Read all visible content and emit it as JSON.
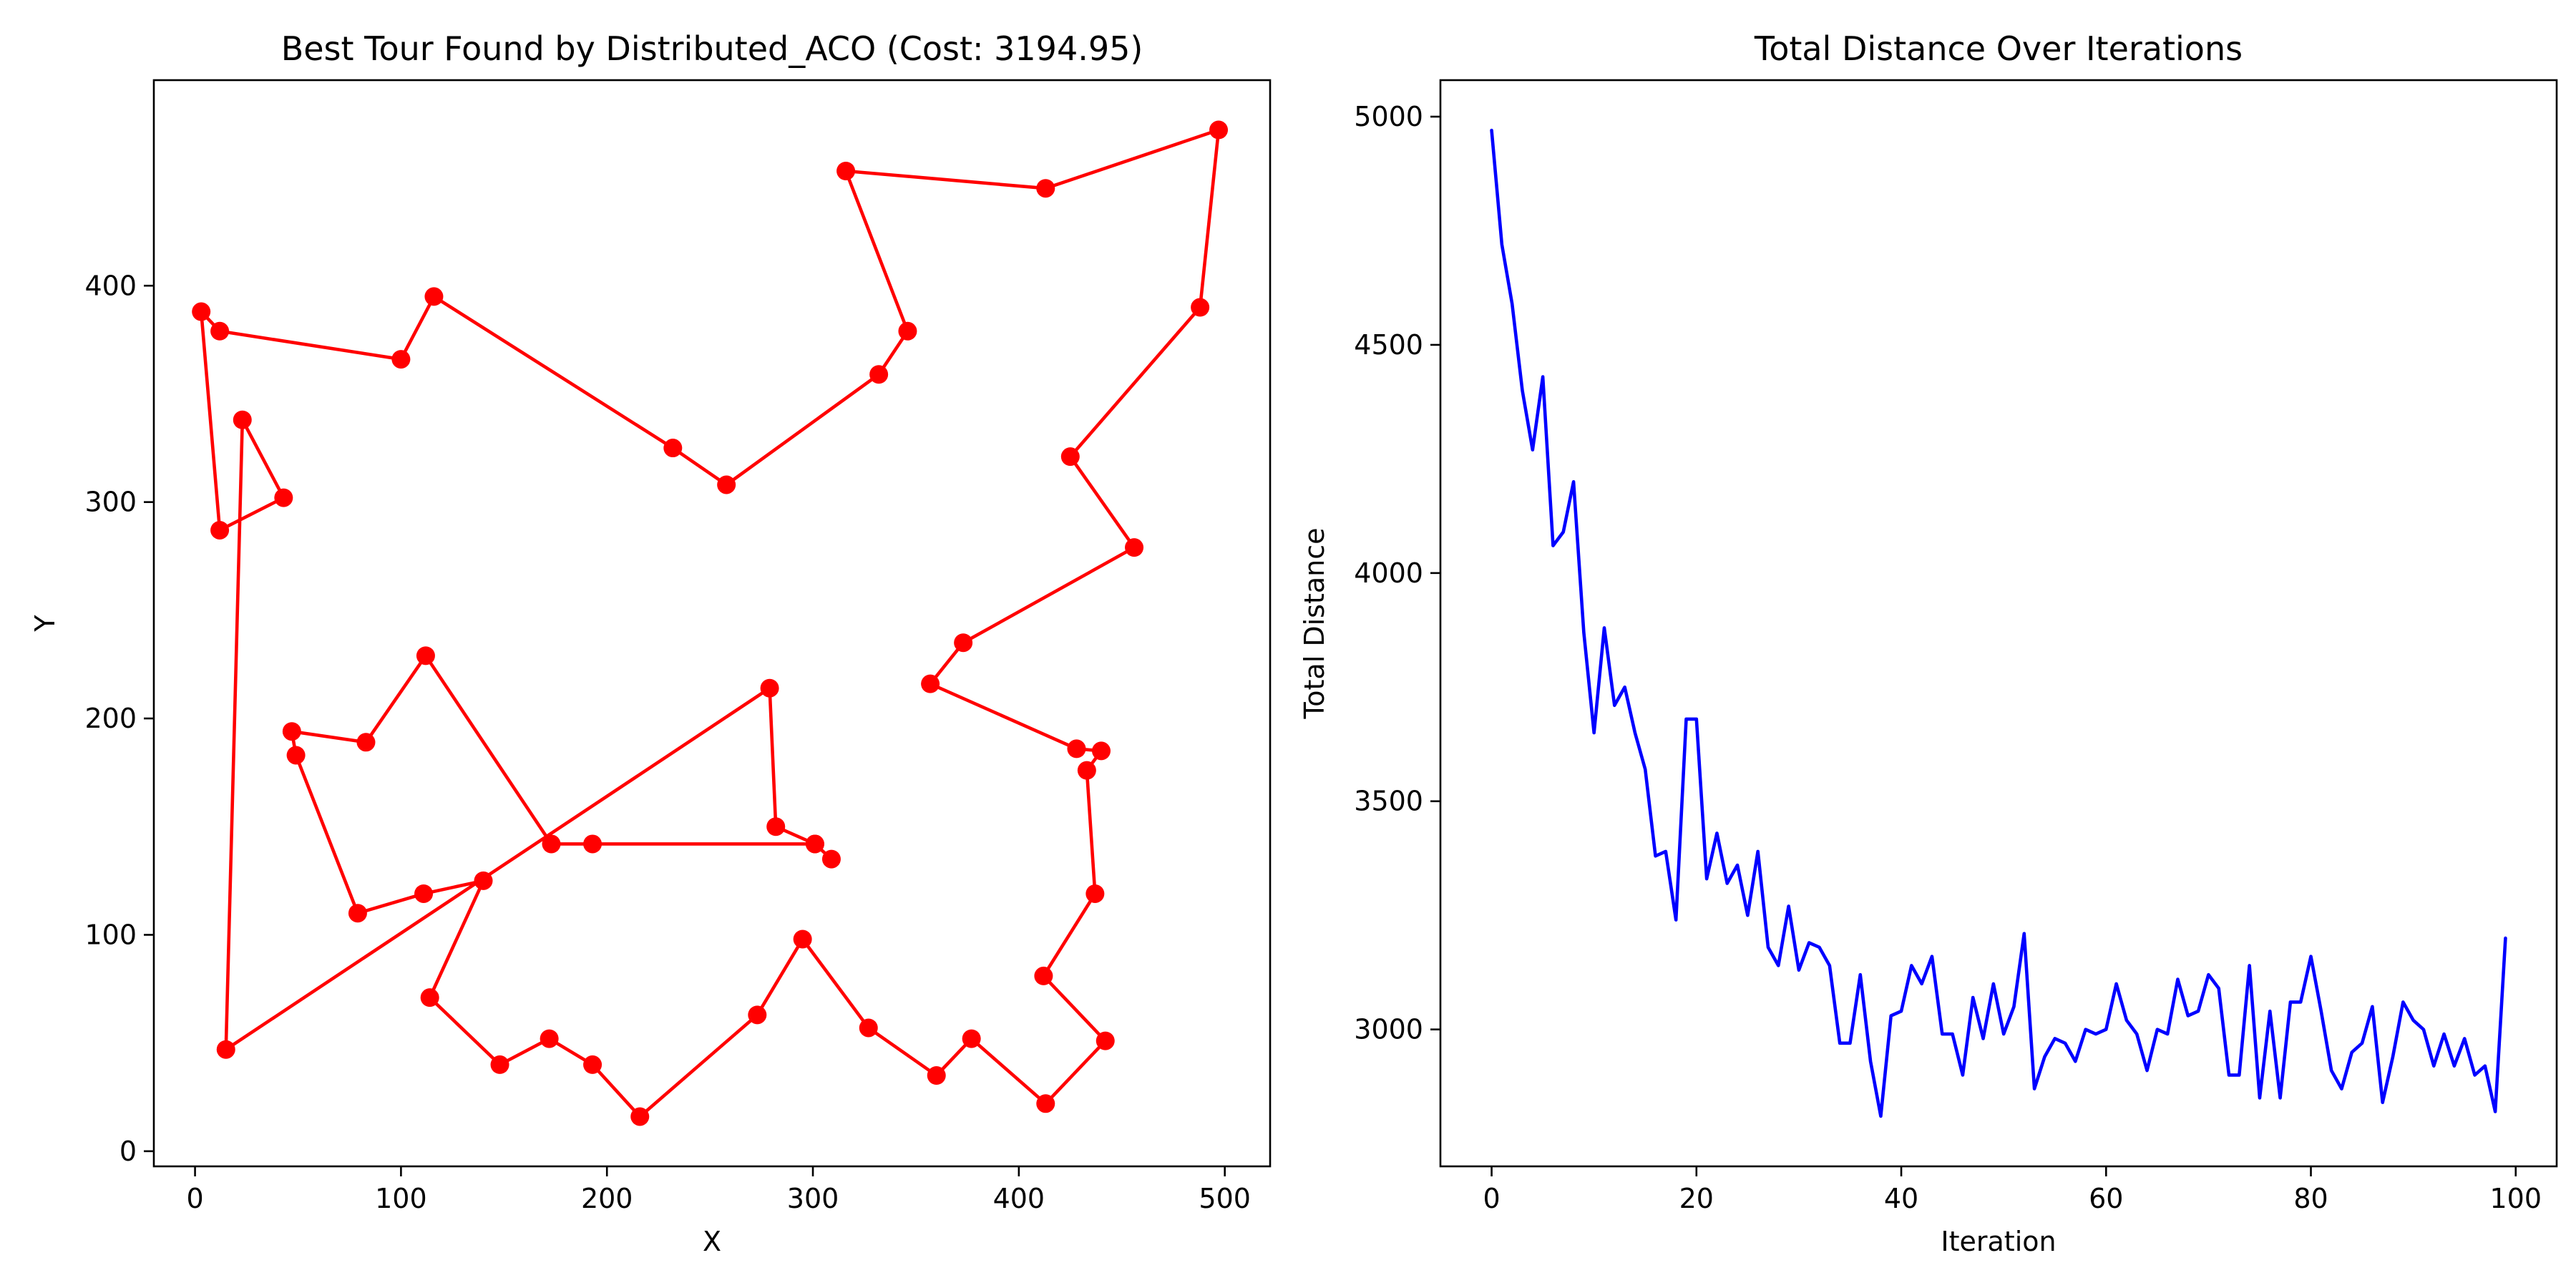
{
  "chart_data": [
    {
      "type": "line",
      "title": "Best Tour Found by Distributed_ACO (Cost: 3194.95)",
      "xlabel": "X",
      "ylabel": "Y",
      "xlim": [
        -20,
        522
      ],
      "ylim": [
        -7,
        495
      ],
      "xticks": [
        0,
        100,
        200,
        300,
        400,
        500
      ],
      "yticks": [
        0,
        100,
        200,
        300,
        400
      ],
      "grid": false,
      "color": "#ff0000",
      "marker": "circle",
      "series": [
        {
          "x": [
            316,
            413,
            497,
            488,
            425,
            456,
            373,
            357,
            428,
            440,
            433,
            437,
            412,
            442,
            413,
            377,
            360,
            327,
            295,
            273,
            216,
            193,
            172,
            148,
            114,
            140,
            111,
            79,
            49,
            47,
            83,
            112,
            173,
            193,
            301,
            309,
            301,
            282,
            279,
            15,
            23,
            43,
            12,
            3,
            12,
            100,
            116,
            232,
            258,
            332,
            346,
            316
          ],
          "y": [
            453,
            445,
            472,
            390,
            321,
            279,
            235,
            216,
            186,
            185,
            176,
            119,
            81,
            51,
            22,
            52,
            35,
            57,
            98,
            63,
            16,
            40,
            52,
            40,
            71,
            125,
            119,
            110,
            183,
            194,
            189,
            229,
            142,
            142,
            142,
            135,
            142,
            150,
            214,
            47,
            338,
            302,
            287,
            388,
            379,
            366,
            395,
            325,
            308,
            359,
            379,
            453
          ]
        }
      ]
    },
    {
      "type": "line",
      "title": "Total Distance Over Iterations",
      "xlabel": "Iteration",
      "ylabel": "Total Distance",
      "xlim": [
        -5,
        104
      ],
      "ylim": [
        2700,
        5080
      ],
      "xticks": [
        0,
        20,
        40,
        60,
        80,
        100
      ],
      "yticks": [
        3000,
        3500,
        4000,
        4500,
        5000
      ],
      "grid": false,
      "color": "#0000ff",
      "series": [
        {
          "x": [
            0,
            1,
            2,
            3,
            4,
            5,
            6,
            7,
            8,
            9,
            10,
            11,
            12,
            13,
            14,
            15,
            16,
            17,
            18,
            19,
            20,
            21,
            22,
            23,
            24,
            25,
            26,
            27,
            28,
            29,
            30,
            31,
            32,
            33,
            34,
            35,
            36,
            37,
            38,
            39,
            40,
            41,
            42,
            43,
            44,
            45,
            46,
            47,
            48,
            49,
            50,
            51,
            52,
            53,
            54,
            55,
            56,
            57,
            58,
            59,
            60,
            61,
            62,
            63,
            64,
            65,
            66,
            67,
            68,
            69,
            70,
            71,
            72,
            73,
            74,
            75,
            76,
            77,
            78,
            79,
            80,
            81,
            82,
            83,
            84,
            85,
            86,
            87,
            88,
            89,
            90,
            91,
            92,
            93,
            94,
            95,
            96,
            97,
            98,
            99
          ],
          "y": [
            4970,
            4720,
            4590,
            4400,
            4270,
            4430,
            4060,
            4090,
            4200,
            3870,
            3650,
            3880,
            3710,
            3750,
            3650,
            3570,
            3380,
            3390,
            3240,
            3680,
            3680,
            3330,
            3430,
            3320,
            3360,
            3250,
            3390,
            3180,
            3140,
            3270,
            3130,
            3190,
            3180,
            3140,
            2970,
            2970,
            3120,
            2930,
            2810,
            3030,
            3040,
            3140,
            3100,
            3160,
            2990,
            2990,
            2900,
            3070,
            2980,
            3100,
            2990,
            3050,
            3210,
            2870,
            2940,
            2980,
            2970,
            2930,
            3000,
            2990,
            3000,
            3100,
            3020,
            2990,
            2910,
            3000,
            2990,
            3110,
            3030,
            3040,
            3120,
            3090,
            2900,
            2900,
            3140,
            2850,
            3040,
            2850,
            3060,
            3060,
            3160,
            3040,
            2910,
            2870,
            2950,
            2970,
            3050,
            2840,
            2940,
            3060,
            3020,
            3000,
            2920,
            2990,
            2920,
            2980,
            2900,
            2920,
            2820,
            3200
          ]
        }
      ]
    }
  ]
}
